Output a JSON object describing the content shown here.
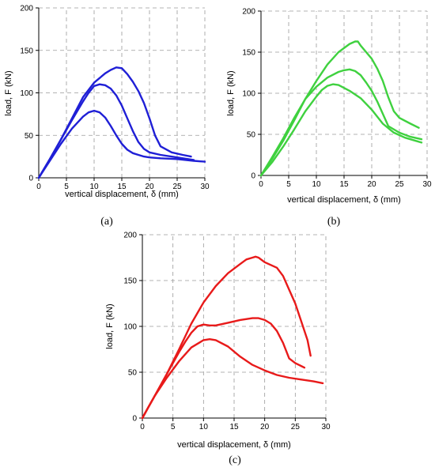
{
  "chart_data": [
    {
      "type": "line",
      "panel_label": "(a)",
      "xlabel": "vertical displacement, δ (mm)",
      "ylabel": "load, F (kN)",
      "xlim": [
        0,
        30
      ],
      "ylim": [
        0,
        200
      ],
      "xticks": [
        0,
        5,
        10,
        15,
        20,
        25,
        30
      ],
      "yticks": [
        0,
        50,
        100,
        150,
        200
      ],
      "grid": true,
      "color": "#1f1fd6",
      "series": [
        {
          "x": [
            0,
            2,
            4,
            6,
            8,
            10,
            12,
            13,
            14,
            15,
            16,
            17,
            18,
            19,
            20,
            21,
            22,
            24,
            26,
            27.5
          ],
          "y": [
            0,
            22,
            45,
            70,
            95,
            112,
            123,
            127,
            130,
            129,
            122,
            113,
            102,
            88,
            70,
            50,
            37,
            30,
            27,
            25
          ]
        },
        {
          "x": [
            0,
            2,
            4,
            6,
            8,
            9,
            10,
            11,
            12,
            13,
            14,
            15,
            16,
            17,
            18,
            19,
            20,
            22,
            25,
            28
          ],
          "y": [
            0,
            22,
            45,
            68,
            90,
            100,
            108,
            110,
            109,
            105,
            97,
            85,
            70,
            55,
            42,
            34,
            30,
            27,
            24,
            21
          ]
        },
        {
          "x": [
            0,
            2,
            4,
            6,
            8,
            9,
            10,
            11,
            12,
            13,
            14,
            15,
            16,
            17,
            18,
            19,
            20,
            22,
            25,
            28,
            30
          ],
          "y": [
            0,
            20,
            40,
            58,
            72,
            77,
            79,
            77,
            71,
            61,
            50,
            40,
            33,
            29,
            27,
            25,
            24,
            23,
            22,
            20,
            19
          ]
        }
      ]
    },
    {
      "type": "line",
      "panel_label": "(b)",
      "xlabel": "vertical displacement, δ (mm)",
      "ylabel": "load, F (kN)",
      "xlim": [
        0,
        30
      ],
      "ylim": [
        0,
        200
      ],
      "xticks": [
        0,
        5,
        10,
        15,
        20,
        25,
        30
      ],
      "yticks": [
        0,
        50,
        100,
        150,
        200
      ],
      "grid": true,
      "color": "#3fd13f",
      "series": [
        {
          "x": [
            0,
            2,
            4,
            6,
            8,
            10,
            12,
            14,
            16,
            17,
            17.5,
            18,
            19,
            20,
            21,
            22,
            23,
            24,
            25,
            27,
            28.5
          ],
          "y": [
            0,
            20,
            42,
            67,
            93,
            115,
            135,
            150,
            160,
            163,
            163,
            158,
            150,
            142,
            130,
            115,
            95,
            78,
            70,
            63,
            58
          ]
        },
        {
          "x": [
            0,
            2,
            4,
            6,
            8,
            10,
            12,
            14,
            15,
            16,
            17,
            18,
            19,
            20,
            21,
            22,
            23,
            25,
            27,
            29
          ],
          "y": [
            0,
            22,
            45,
            70,
            93,
            108,
            119,
            126,
            128,
            129,
            127,
            122,
            113,
            103,
            90,
            75,
            60,
            52,
            47,
            44
          ]
        },
        {
          "x": [
            0,
            2,
            4,
            6,
            8,
            10,
            11,
            12,
            13,
            14,
            16,
            18,
            20,
            22,
            24,
            26,
            28,
            29
          ],
          "y": [
            0,
            16,
            35,
            56,
            78,
            96,
            104,
            109,
            111,
            110,
            103,
            94,
            80,
            63,
            52,
            46,
            42,
            40
          ]
        }
      ]
    },
    {
      "type": "line",
      "panel_label": "(c)",
      "xlabel": "vertical displacement, δ (mm)",
      "ylabel": "load, F (kN)",
      "xlim": [
        0,
        30
      ],
      "ylim": [
        0,
        200
      ],
      "xticks": [
        0,
        5,
        10,
        15,
        20,
        25,
        30
      ],
      "yticks": [
        0,
        50,
        100,
        150,
        200
      ],
      "grid": true,
      "color": "#e81a1a",
      "series": [
        {
          "x": [
            0,
            1,
            2,
            4,
            6,
            8,
            10,
            12,
            14,
            16,
            17,
            18,
            18.5,
            19,
            20,
            21,
            22,
            23,
            24,
            25,
            26,
            27,
            27.5
          ],
          "y": [
            0,
            12,
            24,
            48,
            75,
            103,
            126,
            144,
            158,
            168,
            173,
            175,
            176,
            175,
            170,
            167,
            164,
            155,
            140,
            125,
            105,
            85,
            68
          ]
        },
        {
          "x": [
            0,
            1,
            2,
            4,
            6,
            7,
            8,
            9,
            10,
            11,
            12,
            14,
            16,
            18,
            19,
            20,
            21,
            22,
            23,
            24,
            25,
            26.5
          ],
          "y": [
            0,
            12,
            24,
            48,
            72,
            83,
            93,
            100,
            102,
            101,
            101,
            104,
            107,
            109,
            109,
            107,
            103,
            95,
            82,
            65,
            60,
            55
          ]
        },
        {
          "x": [
            0,
            1,
            2,
            4,
            6,
            8,
            10,
            11,
            12,
            14,
            16,
            18,
            20,
            22,
            24,
            26,
            28,
            29.5
          ],
          "y": [
            0,
            12,
            24,
            44,
            62,
            77,
            85,
            86,
            85,
            78,
            67,
            58,
            52,
            47,
            44,
            42,
            40,
            38
          ]
        }
      ]
    }
  ]
}
